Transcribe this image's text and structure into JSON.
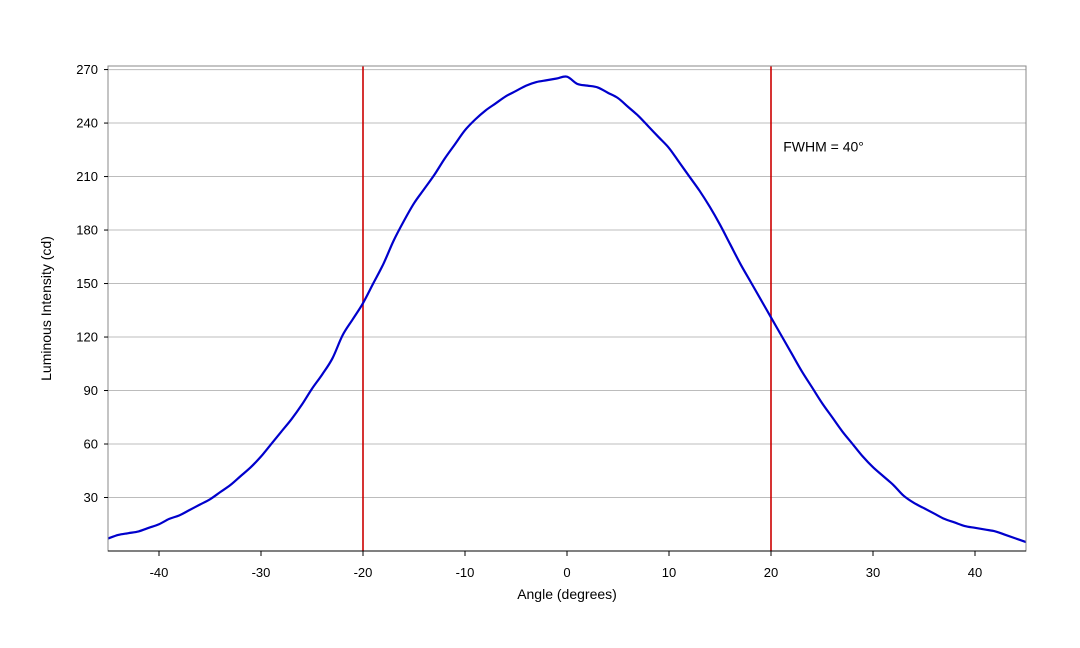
{
  "chart_data": {
    "type": "line",
    "title": "",
    "xlabel": "Angle (degrees)",
    "ylabel": "Luminous Intensity (cd)",
    "xlim": [
      -45,
      45
    ],
    "ylim": [
      0,
      272
    ],
    "xticks": [
      -40,
      -30,
      -20,
      -10,
      0,
      10,
      20,
      30,
      40
    ],
    "yticks": [
      30,
      60,
      90,
      120,
      150,
      180,
      210,
      240,
      270
    ],
    "grid": "horizontal",
    "legend": "none",
    "series": [
      {
        "color": "#0000cc",
        "x": [
          -45,
          -44,
          -43,
          -42,
          -41,
          -40,
          -39,
          -38,
          -37,
          -36,
          -35,
          -34,
          -33,
          -32,
          -31,
          -30,
          -29,
          -28,
          -27,
          -26,
          -25,
          -24,
          -23,
          -22,
          -21,
          -20,
          -19,
          -18,
          -17,
          -16,
          -15,
          -14,
          -13,
          -12,
          -11,
          -10,
          -9,
          -8,
          -7,
          -6,
          -5,
          -4,
          -3,
          -2,
          -1,
          0,
          1,
          2,
          3,
          4,
          5,
          6,
          7,
          8,
          9,
          10,
          11,
          12,
          13,
          14,
          15,
          16,
          17,
          18,
          19,
          20,
          21,
          22,
          23,
          24,
          25,
          26,
          27,
          28,
          29,
          30,
          31,
          32,
          33,
          34,
          35,
          36,
          37,
          38,
          39,
          40,
          41,
          42,
          43,
          44,
          45
        ],
        "y": [
          7,
          9,
          10,
          11,
          13,
          15,
          18,
          20,
          23,
          26,
          29,
          33,
          37,
          42,
          47,
          53,
          60,
          67,
          74,
          82,
          91,
          99,
          108,
          121,
          130,
          139,
          150,
          161,
          174,
          185,
          195,
          203,
          211,
          220,
          228,
          236,
          242,
          247,
          251,
          255,
          258,
          261,
          263,
          264,
          265,
          266,
          262,
          261,
          260,
          257,
          254,
          249,
          244,
          238,
          232,
          226,
          218,
          210,
          202,
          193,
          183,
          172,
          161,
          151,
          141,
          131,
          121,
          111,
          101,
          92,
          83,
          75,
          67,
          60,
          53,
          47,
          42,
          37,
          31,
          27,
          24,
          21,
          18,
          16,
          14,
          13,
          12,
          11,
          9,
          7,
          5
        ]
      }
    ],
    "markers": [
      {
        "x": -20,
        "color": "#cc0000"
      },
      {
        "x": 20,
        "color": "#cc0000"
      }
    ],
    "annotations": [
      {
        "text": "FWHM = 40°",
        "x": 21.2,
        "y": 224
      }
    ],
    "colors": {
      "grid": "#bcbcbc",
      "frame": "#888888",
      "line": "#0000cc",
      "marker": "#cc0000"
    }
  }
}
